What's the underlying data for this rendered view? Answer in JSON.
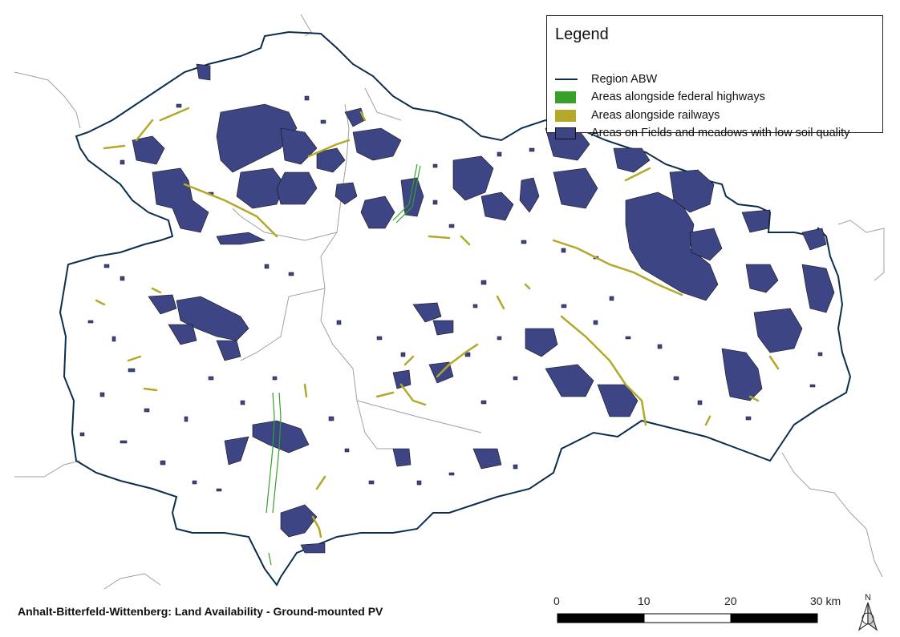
{
  "map": {
    "title": "Anhalt-Bitterfeld-Wittenberg: Land Availability - Ground-mounted PV",
    "colors": {
      "region_outline": "#0b2e4f",
      "highways": "#36a02a",
      "railways": "#b3a829",
      "fields": "#3e4585",
      "neighbor_borders": "#a0a0a0"
    }
  },
  "legend": {
    "title": "Legend",
    "items": [
      {
        "label": "Region ABW",
        "kind": "line",
        "color": "#0b2e4f"
      },
      {
        "label": "Areas alongside federal highways",
        "kind": "box",
        "color": "#36a02a"
      },
      {
        "label": "Areas alongside railways",
        "kind": "box",
        "color": "#b3a829"
      },
      {
        "label": "Areas on Fields and meadows with low soil quality",
        "kind": "box",
        "color": "#3e4585"
      }
    ]
  },
  "scale_bar": {
    "ticks": [
      "0",
      "10",
      "20",
      "30 km"
    ],
    "unit": "km"
  },
  "north_arrow": {
    "label": "N",
    "icon": "north-arrow-icon"
  }
}
